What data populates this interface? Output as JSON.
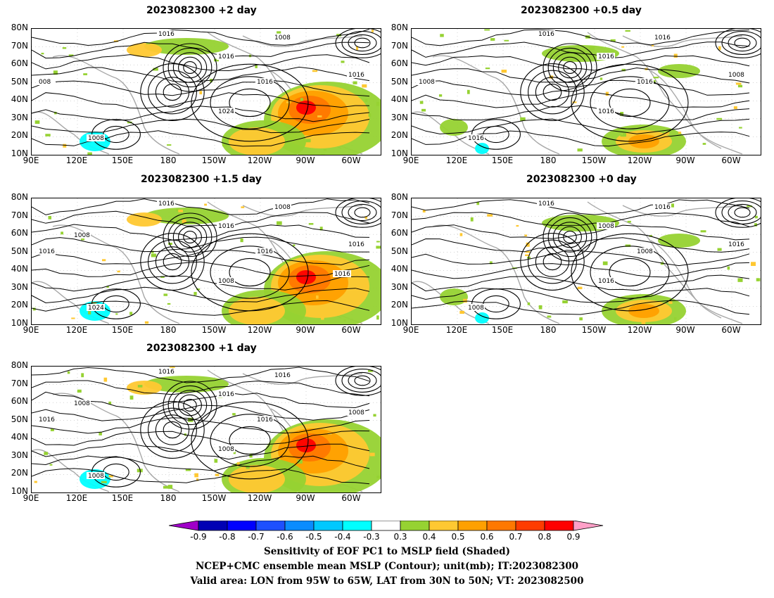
{
  "panels": [
    {
      "id": "p2d",
      "title": "2023082300  +2 day",
      "contour_labels": [
        "1016",
        "1008",
        "1016",
        "1016",
        "1016",
        "1024",
        "1008",
        "008"
      ],
      "shading": "strong"
    },
    {
      "id": "p05d",
      "title": "2023082300  +0.5 day",
      "contour_labels": [
        "1016",
        "1016",
        "1016",
        "1016",
        "1008",
        "1016",
        "1016",
        "1008"
      ],
      "shading": "weak"
    },
    {
      "id": "p15d",
      "title": "2023082300  +1.5 day",
      "contour_labels": [
        "1016",
        "1008",
        "1016",
        "1016",
        "1016",
        "1008",
        "1024",
        "1016",
        "1008",
        "1016"
      ],
      "shading": "strong"
    },
    {
      "id": "p0d",
      "title": "2023082300  +0 day",
      "contour_labels": [
        "1016",
        "1016",
        "1008",
        "1008",
        "1016",
        "1016",
        "1008"
      ],
      "shading": "weak"
    },
    {
      "id": "p1d",
      "title": "2023082300  +1 day",
      "contour_labels": [
        "1016",
        "1016",
        "1016",
        "1016",
        "1008",
        "1008",
        "1008",
        "1016",
        "1008"
      ],
      "shading": "strong"
    }
  ],
  "axes": {
    "lat_labels": [
      "80N",
      "70N",
      "60N",
      "50N",
      "40N",
      "30N",
      "20N",
      "10N"
    ],
    "lon_labels": [
      "90E",
      "120E",
      "150E",
      "180",
      "150W",
      "120W",
      "90W",
      "60W"
    ]
  },
  "colorbar": {
    "labels": [
      "-0.9",
      "-0.8",
      "-0.7",
      "-0.6",
      "-0.5",
      "-0.4",
      "-0.3",
      "0.3",
      "0.4",
      "0.5",
      "0.6",
      "0.7",
      "0.8",
      "0.9"
    ],
    "colors": [
      "#a000c8",
      "#0000b4",
      "#0000ff",
      "#1e50ff",
      "#0a8cff",
      "#00c8ff",
      "#00ffff",
      "#ffffff",
      "#96d232",
      "#ffc832",
      "#ffa000",
      "#ff7800",
      "#ff3c00",
      "#ff0000",
      "#ffa0c8"
    ]
  },
  "footer": {
    "line1": "Sensitivity of EOF PC1 to MSLP field (Shaded)",
    "line2": "NCEP+CMC ensemble mean MSLP (Contour); unit(mb); IT:2023082300",
    "line3": "Valid area: LON from 95W to 65W, LAT from 30N to 50N; VT: 2023082500"
  }
}
